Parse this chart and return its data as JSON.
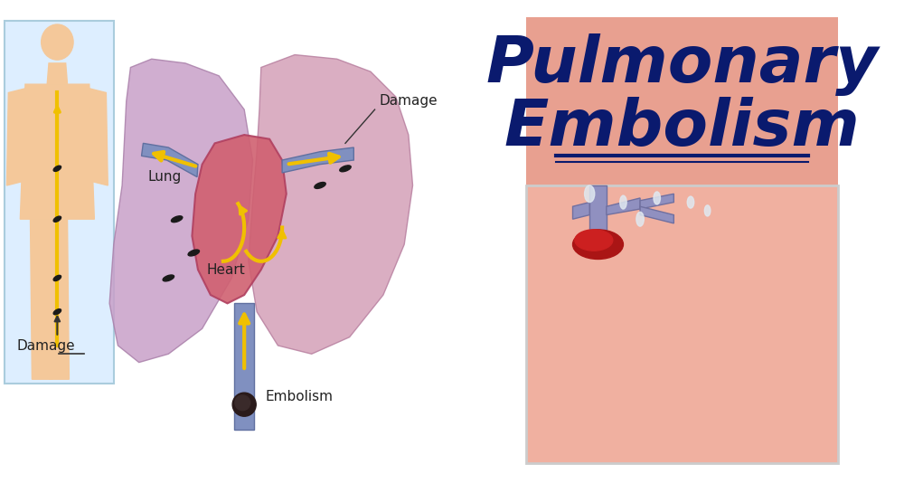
{
  "title_line1": "Pulmonary",
  "title_line2": "Embolism",
  "title_color": "#0a1a6e",
  "title_fontsize": 52,
  "background_color": "#ffffff",
  "label_lung": "Lung",
  "label_heart": "Heart",
  "label_damage_top": "Damage",
  "label_damage_bottom": "Damage",
  "label_embolism": "Embolism",
  "label_color": "#222222",
  "lung_color_left": "#c8a0c8",
  "lung_color_right": "#d4a0b8",
  "heart_color": "#d06080",
  "arrow_color": "#f0c000",
  "vessel_color": "#8090b0",
  "clot_color": "#3a2a2a",
  "underline_color": "#0a1a6e",
  "fig_width": 10.0,
  "fig_height": 5.45
}
